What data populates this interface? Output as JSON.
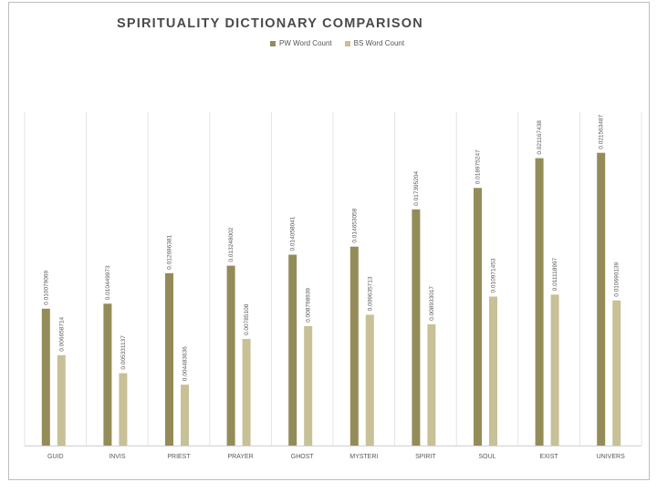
{
  "chart_data": {
    "type": "bar",
    "title": "SPIRITUALITY DICTIONARY COMPARISON",
    "xlabel": "",
    "ylabel": "",
    "categories": [
      "GUID",
      "INVIS",
      "PRIEST",
      "PRAYER",
      "GHOST",
      "MYSTERI",
      "SPIRIT",
      "SOUL",
      "EXIST",
      "UNIVERS"
    ],
    "series": [
      {
        "name": "PW Word Count",
        "color": "#948c58",
        "values": [
          0.010079069,
          0.010449973,
          0.012696381,
          0.013248002,
          0.014058041,
          0.014653058,
          0.017395204,
          0.018975247,
          0.021167438,
          0.021563487
        ],
        "labels": [
          "0.010079069",
          "0.010449973",
          "0.012696381",
          "0.013248002",
          "0.014058041",
          "0.014653058",
          "0.017395204",
          "0.018975247",
          "0.021167438",
          "0.021563487"
        ]
      },
      {
        "name": "BS Word Count",
        "color": "#c8c097",
        "values": [
          0.006658714,
          0.005331137,
          0.004483636,
          0.00785108,
          0.008798939,
          0.009635713,
          0.008933017,
          0.010971453,
          0.011118997,
          0.010690139
        ],
        "labels": [
          "0.006658714",
          "0.005331137",
          "0.004483636",
          "0.00785108",
          "0.008798939",
          "0.009635713",
          "0.008933017",
          "0.010971453",
          "0.011118997",
          "0.010690139"
        ]
      }
    ],
    "ylim": [
      0,
      0.025
    ],
    "grid": "vertical category separators",
    "legend_position": "top"
  }
}
